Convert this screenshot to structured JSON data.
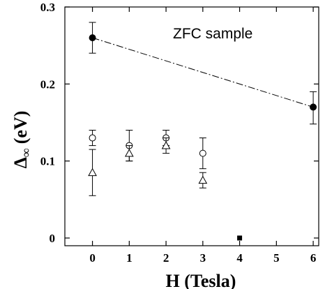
{
  "chart_data": {
    "type": "scatter",
    "title": "",
    "annotation": "ZFC sample",
    "xlabel": "H (Tesla)",
    "ylabel_main": "Δ",
    "ylabel_sub": "∞",
    "ylabel_unit": "(eV)",
    "xlim": [
      -0.75,
      6.15
    ],
    "ylim": [
      -0.01,
      0.3
    ],
    "x_ticks": [
      0,
      1,
      2,
      3,
      4,
      5,
      6
    ],
    "x_tick_labels": [
      "0",
      "1",
      "2",
      "3",
      "4",
      "5",
      "6"
    ],
    "y_ticks": [
      0,
      0.1,
      0.2,
      0.3
    ],
    "y_tick_labels": [
      "0",
      "0.1",
      "0.2",
      "0.3"
    ],
    "grid": false,
    "series": [
      {
        "marker": "filled-circle",
        "connected": "dash-dot",
        "points": [
          {
            "x": 0,
            "y": 0.26,
            "err_low": 0.24,
            "err_high": 0.28
          },
          {
            "x": 6,
            "y": 0.17,
            "err_low": 0.148,
            "err_high": 0.19
          }
        ]
      },
      {
        "marker": "open-circle",
        "points": [
          {
            "x": 0,
            "y": 0.13,
            "err_low": 0.12,
            "err_high": 0.14
          },
          {
            "x": 1,
            "y": 0.12,
            "err_low": 0.1,
            "err_high": 0.14
          },
          {
            "x": 2,
            "y": 0.13,
            "err_low": 0.12,
            "err_high": 0.14
          },
          {
            "x": 3,
            "y": 0.11,
            "err_low": 0.09,
            "err_high": 0.13
          }
        ]
      },
      {
        "marker": "open-triangle",
        "points": [
          {
            "x": 0,
            "y": 0.085,
            "err_low": 0.055,
            "err_high": 0.115
          },
          {
            "x": 1,
            "y": 0.11,
            "err_low": 0.1,
            "err_high": 0.12
          },
          {
            "x": 2,
            "y": 0.12,
            "err_low": 0.11,
            "err_high": 0.13
          },
          {
            "x": 3,
            "y": 0.075,
            "err_low": 0.065,
            "err_high": 0.085
          }
        ]
      },
      {
        "marker": "filled-square",
        "points": [
          {
            "x": 4,
            "y": 0
          }
        ]
      }
    ]
  }
}
